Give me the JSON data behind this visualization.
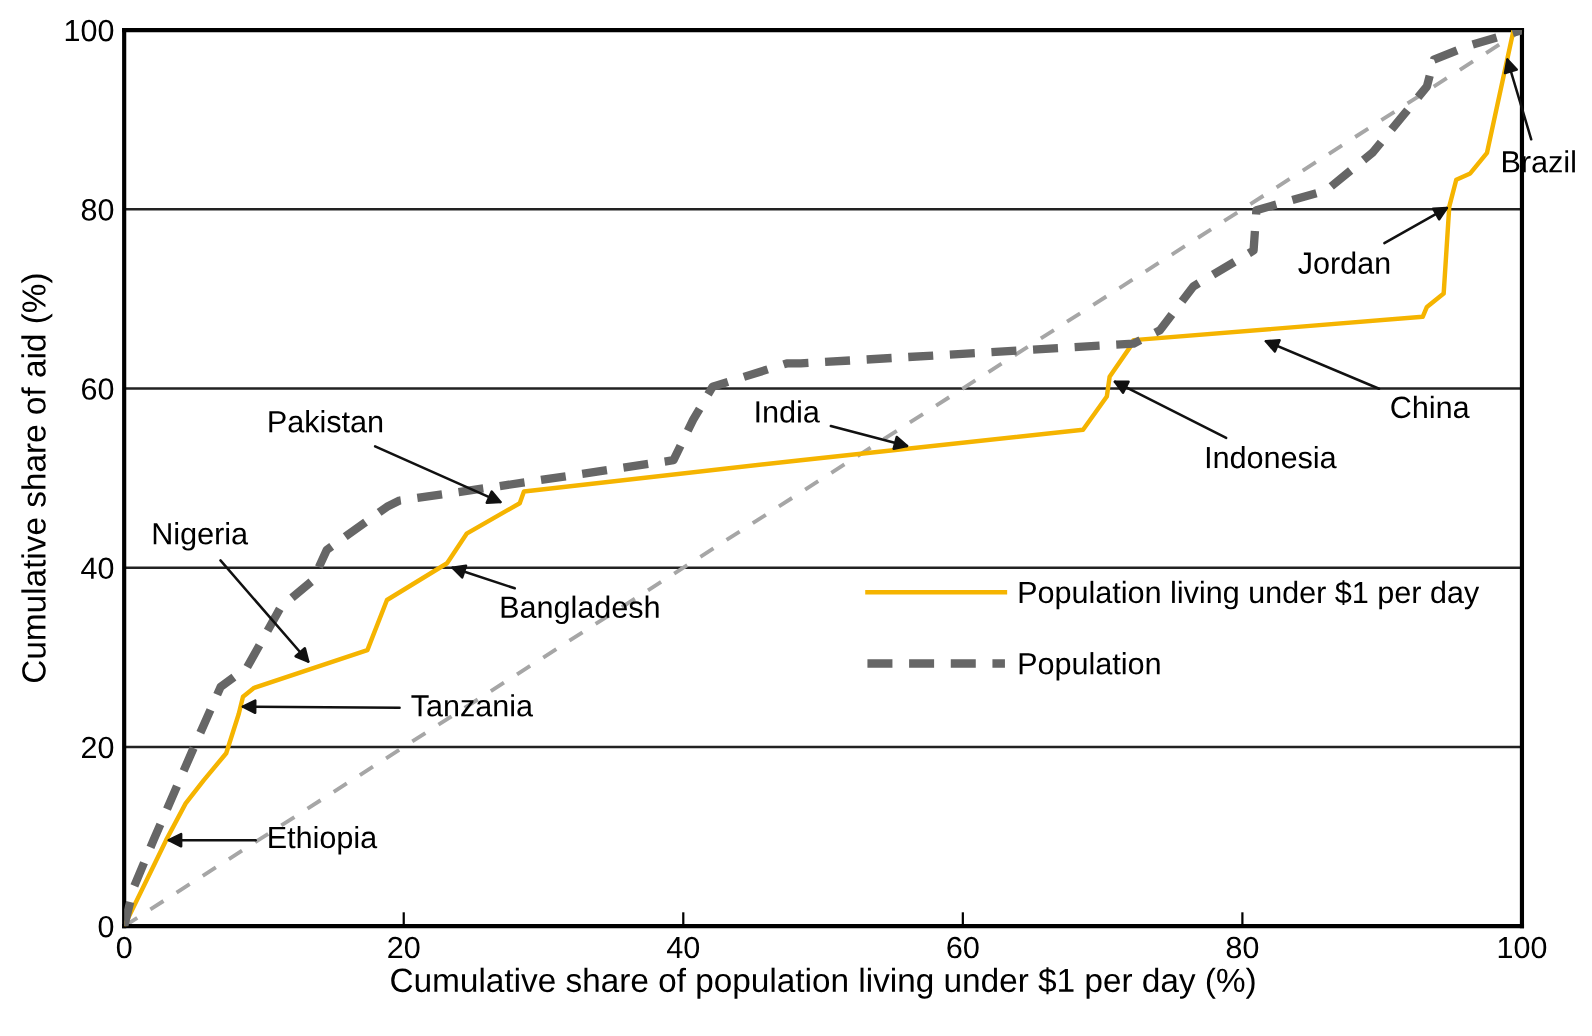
{
  "chart_data": {
    "type": "line",
    "xlabel": "Cumulative share of population living under $1 per day (%)",
    "ylabel": "Cumulative share of aid (%)",
    "xlim": [
      0,
      100
    ],
    "ylim": [
      0,
      100
    ],
    "xticks": [
      0,
      20,
      40,
      60,
      80,
      100
    ],
    "yticks": [
      0,
      20,
      40,
      60,
      80,
      100
    ],
    "grid": "y",
    "legend": "center right",
    "marker": "none",
    "series": [
      {
        "name": "Population living under $1 per day",
        "color": "#f5b400",
        "line_style": "solid",
        "x": [
          0,
          3.0,
          4.4,
          5.7,
          7.3,
          8.2,
          8.5,
          9.3,
          17.4,
          18.8,
          23.1,
          24.5,
          28.3,
          28.6,
          48.4,
          68.6,
          70.3,
          70.5,
          72.0,
          72.2,
          92.9,
          93.2,
          94.4,
          94.8,
          95.3,
          96.3,
          97.5,
          99.4,
          100
        ],
        "values": [
          0,
          9.6,
          13.7,
          16.3,
          19.3,
          23.7,
          25.6,
          26.6,
          30.8,
          36.4,
          40.5,
          43.8,
          47.2,
          48.5,
          52.0,
          55.4,
          59.1,
          61.3,
          64.7,
          65.4,
          68.0,
          69.1,
          70.6,
          80.3,
          83.3,
          84.0,
          86.3,
          100,
          100
        ]
      },
      {
        "name": "Population",
        "color": "#666666",
        "line_style": "dashed",
        "x": [
          0,
          0.7,
          2.1,
          5.0,
          6.9,
          8.8,
          11.2,
          13.5,
          14.5,
          18.8,
          19.7,
          26.4,
          39.3,
          40.7,
          42.1,
          47.4,
          48.4,
          72.2,
          74.1,
          76.5,
          80.8,
          81.0,
          86.0,
          89.3,
          93.2,
          93.7,
          96.1,
          100
        ],
        "values": [
          0,
          4.4,
          9.6,
          20.0,
          26.7,
          28.9,
          35.6,
          38.6,
          42.0,
          46.8,
          47.5,
          49.0,
          52.0,
          56.5,
          60.2,
          62.8,
          62.8,
          65.0,
          66.5,
          71.4,
          75.4,
          79.9,
          82.1,
          86.3,
          93.7,
          96.7,
          98.2,
          100
        ]
      },
      {
        "color": "#a6a6a6",
        "line_style": "dashed",
        "x": [
          0,
          100
        ],
        "values": [
          0,
          100
        ]
      }
    ],
    "annotations": [
      {
        "text": "Ethiopia",
        "x": 3.0,
        "y": 9.6
      },
      {
        "text": "Tanzania",
        "x": 8.3,
        "y": 24.5
      },
      {
        "text": "Nigeria",
        "x": 13.3,
        "y": 29.3
      },
      {
        "text": "Bangladesh",
        "x": 23.3,
        "y": 40.1
      },
      {
        "text": "Pakistan",
        "x": 27.1,
        "y": 47.2
      },
      {
        "text": "India",
        "x": 56.2,
        "y": 53.5
      },
      {
        "text": "Indonesia",
        "x": 70.7,
        "y": 60.9
      },
      {
        "text": "China",
        "x": 81.5,
        "y": 65.4
      },
      {
        "text": "Jordan",
        "x": 94.8,
        "y": 80.3
      },
      {
        "text": "Brazil",
        "x": 98.9,
        "y": 97.0
      }
    ]
  }
}
